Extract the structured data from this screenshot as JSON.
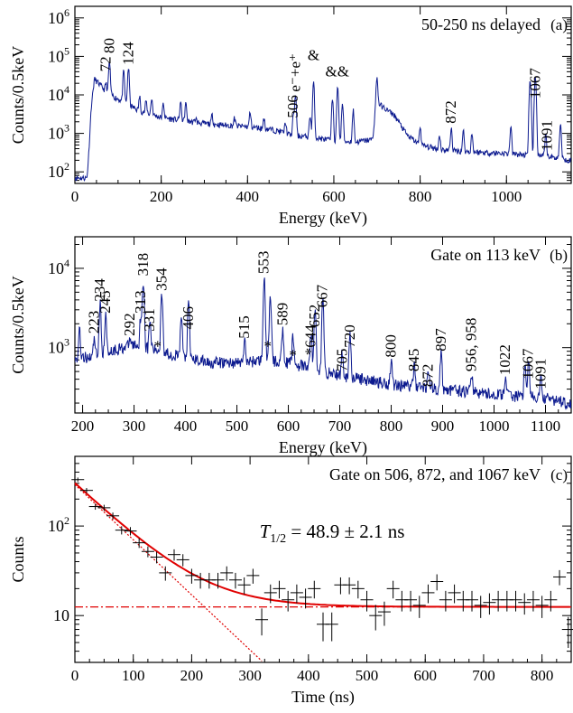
{
  "colors": {
    "spectrum": "#0c1a8f",
    "fit": "#e00000",
    "red_label": "#c8102e",
    "cyan_label": "#1aa0d0",
    "green_label": "#2a9a3a"
  },
  "chart_data": [
    {
      "id": "a",
      "type": "line",
      "title": "50-250 ns delayed",
      "panel_tag": "(a)",
      "xlabel": "Energy (keV)",
      "ylabel": "Counts/0.5keV",
      "xlim": [
        0,
        1150
      ],
      "ylim": [
        50,
        2000000
      ],
      "yscale": "log",
      "xticks": [
        0,
        200,
        400,
        600,
        800,
        1000
      ],
      "yticks": [
        {
          "v": 100,
          "t": "10",
          "e": "2"
        },
        {
          "v": 1000,
          "t": "10",
          "e": "3"
        },
        {
          "v": 10000,
          "t": "10",
          "e": "4"
        },
        {
          "v": 100000,
          "t": "10",
          "e": "5"
        },
        {
          "v": 1000000,
          "t": "10",
          "e": "6"
        }
      ],
      "baseline": [
        [
          28,
          70
        ],
        [
          32,
          300
        ],
        [
          38,
          5000
        ],
        [
          45,
          26000
        ],
        [
          55,
          20000
        ],
        [
          70,
          13000
        ],
        [
          90,
          9000
        ],
        [
          120,
          6000
        ],
        [
          150,
          3800
        ],
        [
          200,
          2600
        ],
        [
          300,
          1800
        ],
        [
          400,
          1500
        ],
        [
          450,
          1300
        ],
        [
          480,
          1100
        ],
        [
          500,
          900
        ],
        [
          550,
          800
        ],
        [
          600,
          650
        ],
        [
          650,
          600
        ],
        [
          690,
          700
        ],
        [
          698,
          6500
        ],
        [
          710,
          5200
        ],
        [
          740,
          3000
        ],
        [
          770,
          900
        ],
        [
          800,
          500
        ],
        [
          850,
          380
        ],
        [
          900,
          340
        ],
        [
          1000,
          300
        ],
        [
          1100,
          250
        ],
        [
          1150,
          200
        ]
      ],
      "peaks": [
        [
          72,
          20000
        ],
        [
          80,
          70000
        ],
        [
          113,
          40000
        ],
        [
          124,
          50000
        ],
        [
          150,
          9000
        ],
        [
          165,
          7000
        ],
        [
          178,
          8000
        ],
        [
          205,
          6000
        ],
        [
          245,
          6500
        ],
        [
          257,
          6000
        ],
        [
          280,
          2500
        ],
        [
          318,
          3000
        ],
        [
          370,
          2500
        ],
        [
          406,
          3500
        ],
        [
          438,
          2500
        ],
        [
          488,
          2000
        ],
        [
          506,
          2800
        ],
        [
          511,
          10000
        ],
        [
          545,
          3000
        ],
        [
          553,
          20000
        ],
        [
          597,
          8000
        ],
        [
          609,
          15000
        ],
        [
          620,
          6000
        ],
        [
          645,
          4000
        ],
        [
          700,
          28000
        ],
        [
          800,
          1500
        ],
        [
          845,
          900
        ],
        [
          872,
          1400
        ],
        [
          900,
          1200
        ],
        [
          920,
          1000
        ],
        [
          1010,
          1500
        ],
        [
          1055,
          25000
        ],
        [
          1067,
          30000
        ],
        [
          1091,
          900
        ],
        [
          1125,
          1800
        ]
      ],
      "annotations": [
        {
          "text": "72",
          "x": 72,
          "y": 40000,
          "color": "#000",
          "rot": -90
        },
        {
          "text": "80",
          "x": 80,
          "y": 120000,
          "color": "#000",
          "rot": -90
        },
        {
          "text": "124",
          "x": 124,
          "y": 60000,
          "color": "#000",
          "rot": -90
        },
        {
          "text": "506",
          "x": 506,
          "y": 2500,
          "color": "#000",
          "rot": -90
        },
        {
          "text": "e⁻+e⁺",
          "x": 511,
          "y": 12000,
          "color": "#000",
          "rot": -90
        },
        {
          "text": "&",
          "x": 553,
          "y": 80000,
          "color": "#000",
          "rot": 0
        },
        {
          "text": "&&",
          "x": 608,
          "y": 30000,
          "color": "#000",
          "rot": 0
        },
        {
          "text": "872",
          "x": 872,
          "y": 1800,
          "color": "#000",
          "rot": -90
        },
        {
          "text": "1067",
          "x": 1067,
          "y": 8000,
          "color": "#000",
          "rot": -90
        },
        {
          "text": "1091",
          "x": 1095,
          "y": 350,
          "color": "#000",
          "rot": -90
        }
      ]
    },
    {
      "id": "b",
      "type": "line",
      "title": "Gate on 113 keV",
      "panel_tag": "(b)",
      "xlabel": "Energy (keV)",
      "ylabel": "Counts/0.5keV",
      "xlim": [
        185,
        1150
      ],
      "ylim": [
        150,
        25000
      ],
      "yscale": "log",
      "xticks": [
        200,
        300,
        400,
        500,
        600,
        700,
        800,
        900,
        1000,
        1100
      ],
      "yticks": [
        {
          "v": 1000,
          "t": "10",
          "e": "3"
        },
        {
          "v": 10000,
          "t": "10",
          "e": "4"
        }
      ],
      "baseline": [
        [
          185,
          700
        ],
        [
          250,
          900
        ],
        [
          300,
          1100
        ],
        [
          350,
          900
        ],
        [
          400,
          750
        ],
        [
          450,
          650
        ],
        [
          500,
          650
        ],
        [
          550,
          700
        ],
        [
          600,
          650
        ],
        [
          700,
          450
        ],
        [
          800,
          350
        ],
        [
          900,
          300
        ],
        [
          1000,
          260
        ],
        [
          1100,
          230
        ],
        [
          1150,
          200
        ]
      ],
      "peaks": [
        [
          194,
          1800
        ],
        [
          223,
          1400
        ],
        [
          234,
          3500
        ],
        [
          245,
          2500
        ],
        [
          292,
          1300
        ],
        [
          313,
          2500
        ],
        [
          318,
          7000
        ],
        [
          331,
          2200
        ],
        [
          354,
          5000
        ],
        [
          392,
          2500
        ],
        [
          406,
          3500
        ],
        [
          515,
          1200
        ],
        [
          553,
          7500
        ],
        [
          565,
          5000
        ],
        [
          589,
          1800
        ],
        [
          609,
          1400
        ],
        [
          644,
          1500
        ],
        [
          652,
          3000
        ],
        [
          667,
          4000
        ],
        [
          705,
          900
        ],
        [
          720,
          1500
        ],
        [
          800,
          700
        ],
        [
          845,
          600
        ],
        [
          872,
          550
        ],
        [
          897,
          850
        ],
        [
          956,
          500
        ],
        [
          1022,
          450
        ],
        [
          1060,
          600
        ],
        [
          1067,
          700
        ],
        [
          1091,
          400
        ]
      ],
      "annotations": [
        {
          "text": "223",
          "x": 223,
          "y": 1500,
          "color": "#1aa0d0",
          "rot": -90
        },
        {
          "text": "234",
          "x": 234,
          "y": 3800,
          "color": "#c8102e",
          "rot": -90
        },
        {
          "text": "245",
          "x": 245,
          "y": 2700,
          "color": "#c8102e",
          "rot": -90
        },
        {
          "text": "292",
          "x": 292,
          "y": 1400,
          "color": "#1aa0d0",
          "rot": -90
        },
        {
          "text": "313",
          "x": 313,
          "y": 2700,
          "color": "#c8102e",
          "rot": -90
        },
        {
          "text": "318",
          "x": 318,
          "y": 8000,
          "color": "#c8102e",
          "rot": -90
        },
        {
          "text": "331",
          "x": 331,
          "y": 1600,
          "color": "#1aa0d0",
          "rot": -90
        },
        {
          "text": "354",
          "x": 354,
          "y": 5200,
          "color": "#c8102e",
          "rot": -90
        },
        {
          "text": "406",
          "x": 406,
          "y": 1700,
          "color": "#c8102e",
          "rot": -90
        },
        {
          "text": "*",
          "x": 346,
          "y": 900,
          "color": "#1aa0d0",
          "rot": 0
        },
        {
          "text": "515",
          "x": 515,
          "y": 1300,
          "color": "#2a9a3a",
          "rot": -90
        },
        {
          "text": "553",
          "x": 553,
          "y": 8500,
          "color": "#c8102e",
          "rot": -90
        },
        {
          "text": "*",
          "x": 560,
          "y": 900,
          "color": "#2a9a3a",
          "rot": 0
        },
        {
          "text": "589",
          "x": 589,
          "y": 1900,
          "color": "#c8102e",
          "rot": -90
        },
        {
          "text": "*",
          "x": 609,
          "y": 700,
          "color": "#2a9a3a",
          "rot": 0
        },
        {
          "text": "*644",
          "x": 644,
          "y": 800,
          "color": "#1aa0d0",
          "rot": -90
        },
        {
          "text": "652",
          "x": 652,
          "y": 1800,
          "color": "#c8102e",
          "rot": -90
        },
        {
          "text": "667",
          "x": 667,
          "y": 3200,
          "color": "#c8102e",
          "rot": -90
        },
        {
          "text": "705",
          "x": 705,
          "y": 500,
          "color": "#1aa0d0",
          "rot": -90
        },
        {
          "text": "720",
          "x": 720,
          "y": 1000,
          "color": "#c8102e",
          "rot": -90
        },
        {
          "text": "800",
          "x": 800,
          "y": 750,
          "color": "#c8102e",
          "rot": -90
        },
        {
          "text": "845",
          "x": 845,
          "y": 500,
          "color": "#c8102e",
          "rot": -90
        },
        {
          "text": "872",
          "x": 872,
          "y": 320,
          "color": "#c8102e",
          "rot": -90
        },
        {
          "text": "897",
          "x": 897,
          "y": 900,
          "color": "#c8102e",
          "rot": -90
        },
        {
          "text": "956, 958",
          "x": 956,
          "y": 500,
          "color": "#2a9a3a",
          "rot": -90
        },
        {
          "text": "1022",
          "x": 1022,
          "y": 450,
          "color": "#c8102e",
          "rot": -90
        },
        {
          "text": "1067",
          "x": 1067,
          "y": 400,
          "color": "#c8102e",
          "rot": -90
        },
        {
          "text": "1091",
          "x": 1091,
          "y": 300,
          "color": "#c8102e",
          "rot": -90
        }
      ]
    },
    {
      "id": "c",
      "type": "scatter",
      "title": "Gate on 506, 872, and 1067 keV",
      "panel_tag": "(c)",
      "xlabel": "Time (ns)",
      "ylabel": "Counts",
      "xlim": [
        0,
        850
      ],
      "ylim": [
        3,
        600
      ],
      "yscale": "log",
      "xticks": [
        0,
        100,
        200,
        300,
        400,
        500,
        600,
        700,
        800
      ],
      "yticks": [
        {
          "v": 10,
          "t": "10",
          "e": ""
        },
        {
          "v": 100,
          "t": "10",
          "e": "2"
        }
      ],
      "halflife": {
        "symbol": "T",
        "sub": "1/2",
        "value": "= 48.9 ± 2.1 ns"
      },
      "fit": {
        "A": 290,
        "halflife_ns": 48.9,
        "background": 12.5
      },
      "points": [
        [
          5,
          330
        ],
        [
          20,
          250
        ],
        [
          35,
          165
        ],
        [
          50,
          160
        ],
        [
          65,
          130
        ],
        [
          80,
          90
        ],
        [
          95,
          88
        ],
        [
          110,
          65
        ],
        [
          125,
          52
        ],
        [
          140,
          45
        ],
        [
          155,
          30
        ],
        [
          170,
          48
        ],
        [
          185,
          42
        ],
        [
          200,
          28
        ],
        [
          215,
          25
        ],
        [
          230,
          25
        ],
        [
          245,
          25
        ],
        [
          260,
          30
        ],
        [
          275,
          25
        ],
        [
          290,
          22
        ],
        [
          305,
          28
        ],
        [
          320,
          9
        ],
        [
          335,
          18
        ],
        [
          350,
          20
        ],
        [
          365,
          15
        ],
        [
          380,
          18
        ],
        [
          395,
          16
        ],
        [
          410,
          20
        ],
        [
          425,
          8
        ],
        [
          440,
          8
        ],
        [
          455,
          22
        ],
        [
          470,
          22
        ],
        [
          485,
          20
        ],
        [
          500,
          15
        ],
        [
          515,
          10
        ],
        [
          530,
          11
        ],
        [
          545,
          20
        ],
        [
          560,
          15
        ],
        [
          575,
          15
        ],
        [
          590,
          13
        ],
        [
          605,
          18
        ],
        [
          620,
          24
        ],
        [
          635,
          15
        ],
        [
          650,
          18
        ],
        [
          665,
          15
        ],
        [
          680,
          15
        ],
        [
          695,
          13
        ],
        [
          710,
          14
        ],
        [
          725,
          15
        ],
        [
          740,
          15
        ],
        [
          755,
          15
        ],
        [
          770,
          14
        ],
        [
          785,
          15
        ],
        [
          800,
          13
        ],
        [
          815,
          15
        ],
        [
          830,
          27
        ],
        [
          845,
          7
        ]
      ]
    }
  ]
}
